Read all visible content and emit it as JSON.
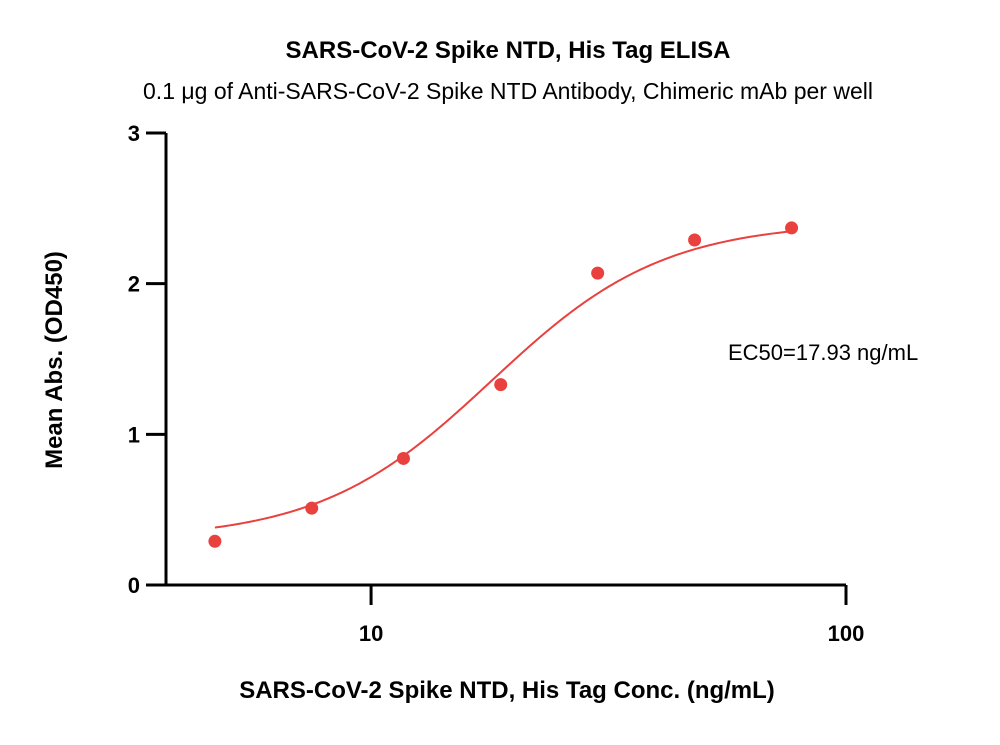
{
  "chart_data": {
    "type": "scatter",
    "title": "SARS-CoV-2 Spike NTD, His Tag ELISA",
    "subtitle": "0.1 μg of Anti-SARS-CoV-2 Spike NTD Antibody, Chimeric mAb per well",
    "xlabel": "SARS-CoV-2 Spike NTD, His Tag Conc. (ng/mL)",
    "ylabel": "Mean Abs. (OD450)",
    "x_scale": "log",
    "xlim": [
      3.7,
      100
    ],
    "ylim": [
      0,
      3
    ],
    "x_ticks": [
      10,
      100
    ],
    "x_tick_labels": [
      "10",
      "100"
    ],
    "y_ticks": [
      0,
      1,
      2,
      3
    ],
    "y_tick_labels": [
      "0",
      "1",
      "2",
      "3"
    ],
    "grid": false,
    "legend": "none",
    "series": [
      {
        "color": "#e8413e",
        "x": [
          4.69,
          7.5,
          11.7,
          18.75,
          30,
          48,
          76.8
        ],
        "y": [
          0.29,
          0.51,
          0.84,
          1.33,
          2.07,
          2.29,
          2.37
        ]
      }
    ],
    "fit_curve": {
      "model": "4PL",
      "bottom": 0.3,
      "top": 2.41,
      "ec50": 17.93,
      "hill": 2.4,
      "x_range": [
        4.69,
        76.8
      ],
      "color": "#e8413e"
    },
    "annotations": [
      {
        "text": "EC50=17.93 ng/mL"
      }
    ]
  }
}
